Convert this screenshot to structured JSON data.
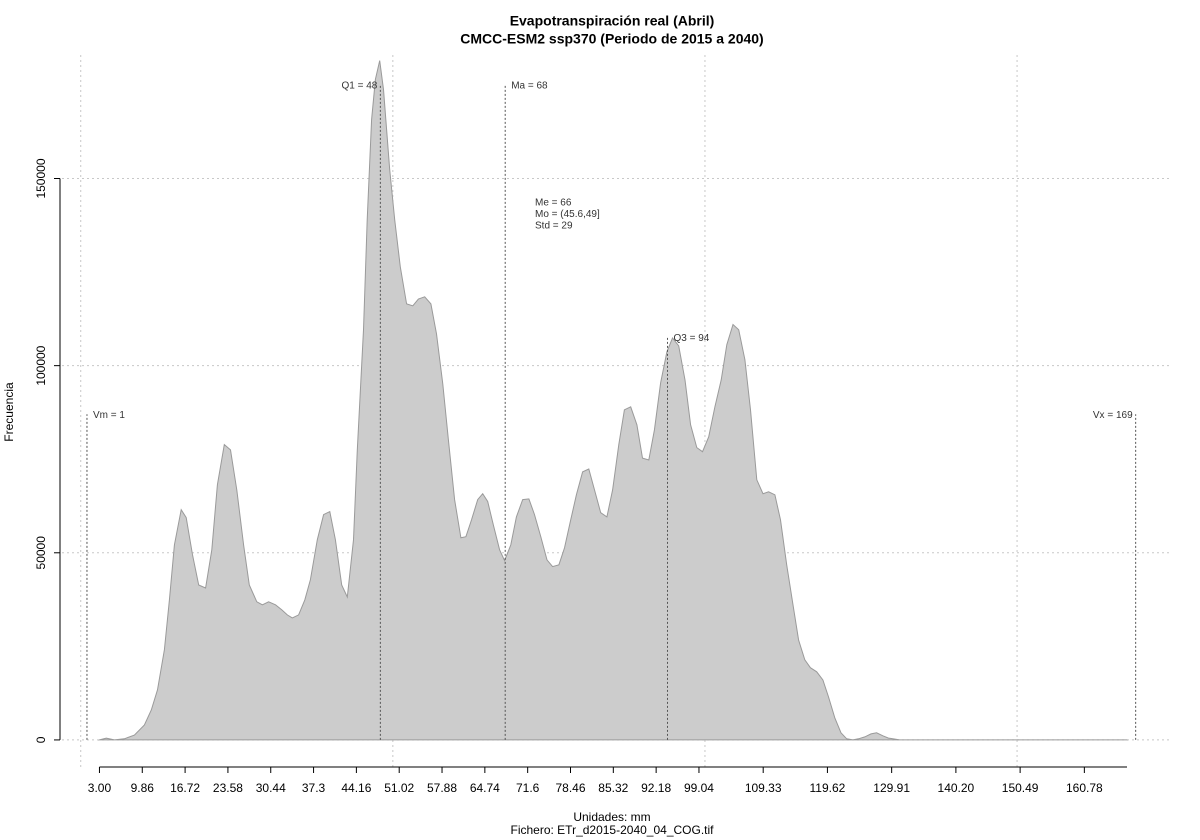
{
  "chart_data": {
    "type": "area",
    "title": "Evapotranspiración real (Abril)",
    "subtitle": "CMCC-ESM2 ssp370 (Periodo de 2015 a 2040)",
    "xlabel": "Unidades: mm",
    "caption": "Fichero: ETr_d2015-2040_04_COG.tif",
    "ylabel": "Frecuencia",
    "color": "#cccccc",
    "x": [
      3.0,
      4.1,
      5.4,
      7.0,
      8.6,
      10.2,
      11.3,
      12.3,
      13.4,
      14.2,
      15.0,
      16.1,
      16.9,
      17.9,
      18.9,
      20.0,
      21.0,
      21.9,
      23.0,
      24.0,
      25.0,
      26.1,
      27.0,
      28.2,
      29.1,
      30.1,
      31.2,
      32.2,
      33.1,
      33.9,
      34.9,
      35.9,
      36.8,
      37.9,
      38.9,
      39.9,
      40.8,
      41.8,
      42.7,
      43.7,
      44.3,
      45.3,
      45.9,
      46.6,
      47.2,
      47.9,
      48.5,
      49.5,
      50.3,
      51.2,
      52.2,
      53.2,
      54.1,
      55.1,
      56.1,
      57.0,
      58.0,
      58.9,
      59.9,
      60.9,
      61.7,
      62.6,
      63.6,
      64.4,
      65.2,
      66.1,
      67.1,
      67.9,
      68.9,
      69.8,
      70.8,
      71.8,
      72.7,
      73.7,
      74.7,
      75.6,
      76.6,
      77.5,
      78.5,
      79.4,
      80.4,
      81.4,
      82.3,
      83.3,
      84.3,
      85.2,
      86.2,
      87.1,
      88.1,
      89.1,
      90.0,
      91.0,
      91.9,
      92.9,
      93.9,
      94.8,
      95.8,
      96.8,
      97.7,
      98.7,
      99.6,
      100.6,
      101.6,
      102.6,
      103.5,
      104.5,
      105.4,
      106.4,
      107.3,
      108.3,
      109.3,
      110.2,
      111.2,
      112.1,
      113.1,
      114.1,
      115.0,
      116.0,
      116.9,
      117.9,
      118.9,
      119.8,
      120.8,
      121.8,
      122.7,
      123.7,
      124.6,
      125.6,
      126.6,
      127.5,
      128.5,
      129.4,
      131.2,
      167.6
    ],
    "values": [
      0,
      500,
      0,
      300,
      1300,
      4000,
      8000,
      13400,
      24100,
      37400,
      52100,
      61500,
      59400,
      49500,
      41400,
      40600,
      50800,
      68200,
      78900,
      77500,
      66800,
      52100,
      41400,
      36900,
      36100,
      36900,
      36100,
      34800,
      33400,
      32600,
      33400,
      37400,
      42800,
      53500,
      60200,
      61000,
      53500,
      41400,
      38200,
      53500,
      77500,
      109600,
      139000,
      165800,
      176500,
      181500,
      173800,
      152400,
      139000,
      126400,
      116500,
      116000,
      117800,
      118400,
      116500,
      108500,
      95100,
      80200,
      64200,
      54000,
      54300,
      58800,
      64200,
      65800,
      63700,
      57500,
      50800,
      47900,
      52100,
      59600,
      64200,
      64400,
      60200,
      54300,
      48100,
      46300,
      46800,
      51300,
      58800,
      65500,
      71600,
      72400,
      66800,
      60700,
      59600,
      66800,
      78900,
      88200,
      89000,
      84200,
      75300,
      74800,
      82800,
      95400,
      103700,
      107400,
      105300,
      96200,
      84200,
      78100,
      77000,
      81000,
      89000,
      96200,
      105600,
      111000,
      109600,
      101600,
      88200,
      69500,
      65800,
      66300,
      65500,
      58800,
      46800,
      36100,
      26700,
      21400,
      19300,
      18200,
      16000,
      11500,
      5900,
      1900,
      300,
      0,
      300,
      800,
      1600,
      1900,
      1100,
      500,
      0,
      0
    ],
    "xlim": [
      -3,
      174.5
    ],
    "ylim": [
      -7500,
      183000
    ],
    "xticks": [
      {
        "value": 3,
        "label": "3.00"
      },
      9.86,
      16.72,
      23.58,
      30.44,
      37.3,
      44.16,
      51.02,
      57.88,
      64.74,
      71.6,
      78.46,
      85.32,
      92.18,
      99.04,
      109.33,
      119.62,
      129.91,
      {
        "value": 140.2,
        "label": "140.20"
      },
      150.49,
      160.78
    ],
    "yticks": [
      0,
      50000,
      100000,
      150000
    ],
    "xgrid": [
      0,
      50,
      100,
      150
    ],
    "ygrid": [
      0,
      50000,
      100000,
      150000
    ],
    "markers": [
      {
        "label": "Vm = 1",
        "value": 1,
        "top": 87000
      },
      {
        "label": "Q1 = 48",
        "value": 48,
        "top": 175000
      },
      {
        "label": "Ma = 68",
        "value": 68,
        "top": 175000
      },
      {
        "label": "Q3 = 94",
        "value": 94,
        "top": 107500
      },
      {
        "label": "Vx = 169",
        "value": 169,
        "top": 87000
      }
    ],
    "stats": [
      "Me = 66",
      "Mo = (45.6,49]",
      "Std = 29"
    ]
  }
}
